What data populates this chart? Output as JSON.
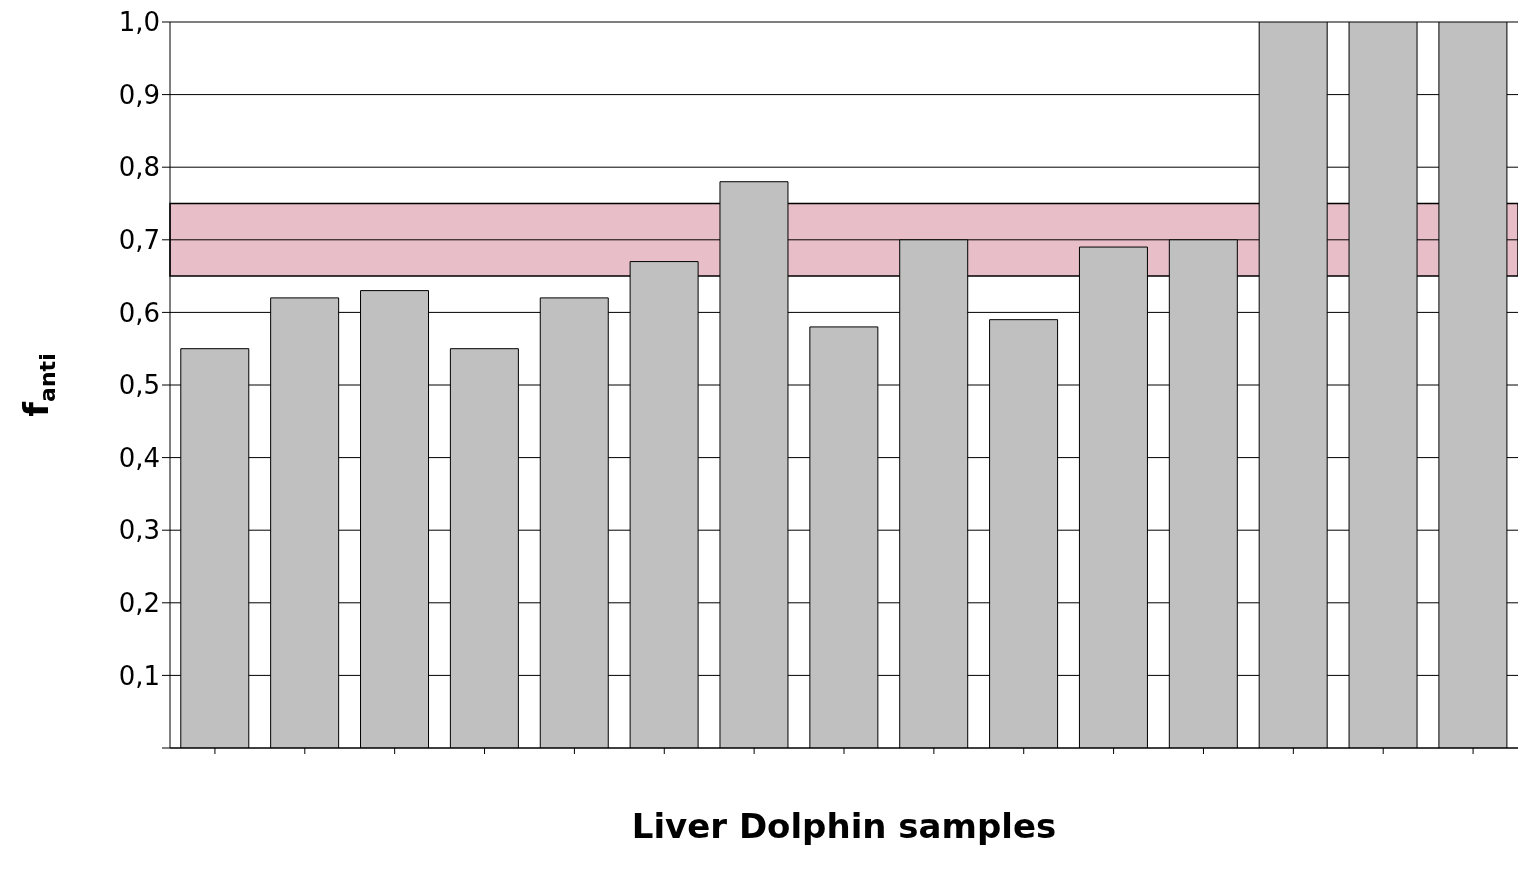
{
  "chart_data": {
    "type": "bar",
    "xlabel": "Liver Dolphin samples",
    "ylabel": "f$_{anti}$",
    "categories": [
      null,
      null,
      null,
      null,
      null,
      null,
      null,
      null,
      null,
      null,
      null,
      null,
      null,
      null,
      null
    ],
    "values": [
      0.55,
      0.62,
      0.63,
      0.55,
      0.62,
      0.67,
      0.78,
      0.58,
      0.7,
      0.59,
      0.69,
      0.7,
      1.0,
      1.0,
      1.0
    ],
    "color": "#c0c0c0",
    "ylim": [
      0,
      1.0
    ],
    "yticks": [
      {
        "value": 0,
        "label": null
      },
      {
        "value": 0.1,
        "label": "0,1"
      },
      {
        "value": 0.2,
        "label": "0,2"
      },
      {
        "value": 0.3,
        "label": "0,3"
      },
      {
        "value": 0.4,
        "label": "0,4"
      },
      {
        "value": 0.5,
        "label": "0,5"
      },
      {
        "value": 0.6,
        "label": "0,6"
      },
      {
        "value": 0.7,
        "label": "0,7"
      },
      {
        "value": 0.8,
        "label": "0,8"
      },
      {
        "value": 0.9,
        "label": "0,9"
      },
      {
        "value": 1.0,
        "label": "1,0"
      }
    ],
    "bands": [
      {
        "axis": "y",
        "from": 0.65,
        "to": 0.75,
        "color": "#e8bfc9"
      }
    ],
    "grid": "y"
  }
}
